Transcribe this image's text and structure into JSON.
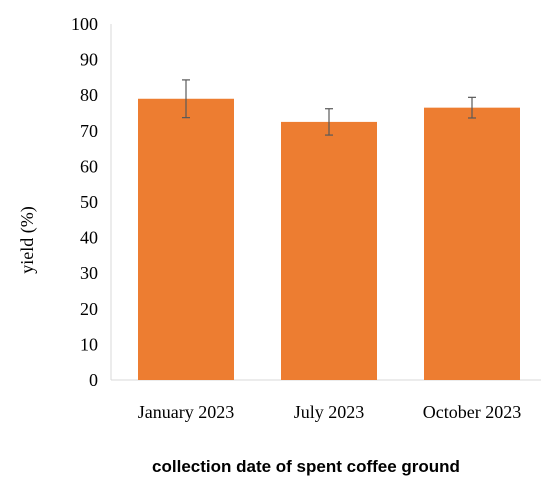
{
  "chart_data": {
    "type": "bar",
    "categories": [
      "January 2023",
      "July 2023",
      "October 2023"
    ],
    "values": [
      79,
      72.5,
      76.5
    ],
    "error": [
      5.3,
      3.7,
      2.9
    ],
    "xlabel": "collection date of spent coffee ground",
    "ylabel": "yield (%)",
    "ylim": [
      0,
      100
    ],
    "yticks": [
      "0",
      "10",
      "20",
      "30",
      "40",
      "50",
      "60",
      "70",
      "80",
      "90",
      "100"
    ],
    "bar_color": "#ED7D31",
    "grid": false
  }
}
